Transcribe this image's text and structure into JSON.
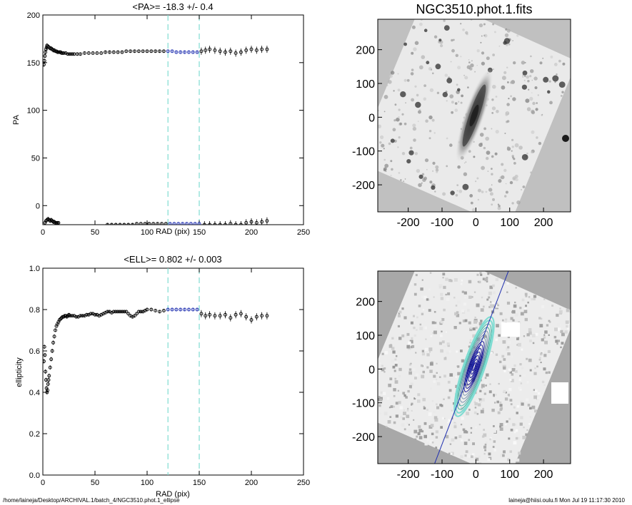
{
  "chart_data": [
    {
      "type": "scatter",
      "title": "<PA>= -18.3 +/-   0.4",
      "xlabel": "RAD (pix)",
      "ylabel": "PA",
      "xlim": [
        0,
        250
      ],
      "ylim": [
        -20,
        200
      ],
      "xticks": [
        0,
        50,
        100,
        150,
        200,
        250
      ],
      "yticks": [
        0,
        50,
        100,
        150,
        200
      ],
      "vlines": [
        120,
        150
      ],
      "vline_color": "#7fdcd2",
      "point_color": "#000000",
      "highlight_color": "#1f2fb0",
      "highlight_range": [
        120,
        150
      ],
      "series": [
        {
          "x": [
            1,
            1.5,
            2,
            2.5,
            3,
            3.5,
            4,
            5,
            6,
            7,
            8,
            9,
            10,
            11,
            12,
            13,
            14,
            15,
            16,
            17,
            18,
            19,
            20,
            22,
            24,
            26,
            28,
            30,
            33,
            36,
            40,
            44,
            48,
            52,
            56,
            60,
            64,
            68,
            72,
            76,
            80,
            84,
            88,
            92,
            96,
            100,
            104,
            108,
            112,
            116,
            120,
            124,
            128,
            132,
            136,
            140,
            144,
            148,
            152,
            156,
            160,
            165,
            170,
            175,
            180,
            185,
            190,
            195,
            200,
            205,
            210,
            215
          ],
          "y": [
            148,
            152,
            157,
            161,
            164,
            166,
            168,
            167,
            166,
            165,
            165,
            164,
            163,
            163,
            162,
            162,
            161,
            161,
            161,
            161,
            160,
            160,
            160,
            160,
            159,
            159,
            159,
            159,
            159,
            159,
            160,
            160,
            160,
            160,
            160,
            161,
            161,
            161,
            161,
            161,
            162,
            162,
            162,
            162,
            162,
            162,
            162,
            162,
            162,
            162,
            162,
            162,
            161,
            161,
            161,
            161,
            161,
            161,
            162,
            163,
            164,
            163,
            162,
            161,
            162,
            160,
            161,
            163,
            164,
            163,
            164,
            164
          ]
        },
        {
          "x": [
            2,
            3,
            4,
            5,
            6,
            7,
            8,
            9,
            10,
            11,
            12,
            13,
            14,
            15,
            62,
            66,
            70,
            74,
            78,
            82,
            86,
            90,
            94,
            98,
            102,
            106,
            110,
            114,
            118,
            122,
            126,
            130,
            134,
            138,
            142,
            146,
            150,
            155,
            160,
            165,
            170,
            175,
            180,
            185,
            190,
            195,
            200,
            205,
            210,
            215
          ],
          "y": [
            -18,
            -16,
            -15,
            -14,
            -15,
            -16,
            -15,
            -16,
            -17,
            -17,
            -18,
            -18,
            -18,
            -18,
            -20,
            -20,
            -20,
            -20,
            -20,
            -20,
            -20,
            -19,
            -19,
            -19,
            -19,
            -19,
            -19,
            -19,
            -19,
            -19,
            -19,
            -19,
            -19,
            -19,
            -19,
            -19,
            -19,
            -20,
            -20,
            -20,
            -20,
            -20,
            -19,
            -20,
            -20,
            -18,
            -17,
            -18,
            -17,
            -16
          ]
        }
      ]
    },
    {
      "type": "scatter",
      "title": "<ELL>= 0.802 +/-  0.003",
      "xlabel": "RAD (pix)",
      "ylabel": "ellipticity",
      "xlim": [
        0,
        250
      ],
      "ylim": [
        0.0,
        1.0
      ],
      "xticks": [
        0,
        50,
        100,
        150,
        200,
        250
      ],
      "yticks": [
        "0.0",
        "0.2",
        "0.4",
        "0.6",
        "0.8",
        "1.0"
      ],
      "vlines": [
        120,
        150
      ],
      "vline_color": "#7fdcd2",
      "point_color": "#000000",
      "highlight_color": "#1f2fb0",
      "highlight_range": [
        120,
        150
      ],
      "series": [
        {
          "x": [
            1,
            1.5,
            2,
            2.5,
            3,
            3.5,
            4,
            4.5,
            5,
            5.5,
            6,
            7,
            8,
            9,
            10,
            11,
            12,
            13,
            14,
            15,
            16,
            17,
            18,
            19,
            20,
            21,
            22,
            23,
            24,
            25,
            26,
            28,
            30,
            32,
            34,
            36,
            38,
            40,
            42,
            44,
            46,
            48,
            50,
            52,
            54,
            56,
            58,
            60,
            62,
            64,
            66,
            68,
            70,
            72,
            74,
            76,
            78,
            80,
            82,
            84,
            86,
            88,
            90,
            92,
            94,
            96,
            98,
            100,
            104,
            108,
            112,
            116,
            120,
            124,
            128,
            132,
            136,
            140,
            144,
            148,
            152,
            156,
            160,
            165,
            170,
            175,
            180,
            185,
            190,
            195,
            200,
            205,
            210,
            215
          ],
          "y": [
            0.55,
            0.62,
            0.58,
            0.5,
            0.46,
            0.42,
            0.4,
            0.41,
            0.44,
            0.46,
            0.48,
            0.52,
            0.56,
            0.6,
            0.64,
            0.67,
            0.7,
            0.72,
            0.73,
            0.74,
            0.75,
            0.755,
            0.76,
            0.765,
            0.765,
            0.77,
            0.77,
            0.765,
            0.77,
            0.775,
            0.77,
            0.77,
            0.77,
            0.765,
            0.765,
            0.77,
            0.77,
            0.77,
            0.775,
            0.775,
            0.78,
            0.78,
            0.775,
            0.775,
            0.77,
            0.775,
            0.78,
            0.785,
            0.79,
            0.79,
            0.785,
            0.79,
            0.79,
            0.79,
            0.79,
            0.79,
            0.79,
            0.79,
            0.78,
            0.77,
            0.765,
            0.77,
            0.78,
            0.79,
            0.79,
            0.79,
            0.795,
            0.8,
            0.8,
            0.795,
            0.79,
            0.795,
            0.8,
            0.8,
            0.8,
            0.8,
            0.8,
            0.8,
            0.8,
            0.8,
            0.78,
            0.77,
            0.775,
            0.77,
            0.77,
            0.775,
            0.76,
            0.775,
            0.78,
            0.765,
            0.75,
            0.765,
            0.77,
            0.77
          ]
        }
      ]
    },
    {
      "type": "heatmap",
      "title": "NGC3510.phot.1.fits",
      "xlim": [
        -290,
        280
      ],
      "ylim": [
        -280,
        290
      ],
      "xticks": [
        -200,
        -100,
        0,
        100,
        200
      ],
      "yticks": [
        -200,
        -100,
        0,
        100,
        200
      ]
    },
    {
      "type": "heatmap",
      "title": "",
      "xlim": [
        -290,
        280
      ],
      "ylim": [
        -280,
        290
      ],
      "xticks": [
        -200,
        -100,
        0,
        100,
        200
      ],
      "yticks": [
        -200,
        -100,
        0,
        100,
        200
      ],
      "contour_colors": [
        "#00008b",
        "#6f8fa8",
        "#3fb0a0",
        "#7fdcd2"
      ],
      "line_color": "#1f2fb0"
    }
  ],
  "footer": {
    "left": "/home/laineja/Desktop/ARCHIVAL.1/batch_4/NGC3510.phot.1_ellipse",
    "right": "laineja@hiisi.oulu.fi  Mon Jul 19 11:17:30 2010"
  }
}
